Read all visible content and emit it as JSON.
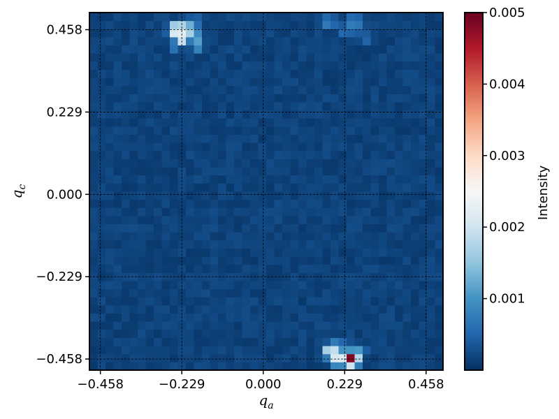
{
  "chart_data": {
    "type": "heatmap",
    "title": "",
    "xlabel_main": "q",
    "xlabel_sub": "a",
    "ylabel_main": "q",
    "ylabel_sub": "c",
    "xlim": [
      -0.4888,
      0.5056
    ],
    "ylim": [
      -0.4888,
      0.5056
    ],
    "x_ticks": [
      -0.458,
      -0.229,
      0.0,
      0.229,
      0.458
    ],
    "x_tick_labels": [
      "−0.458",
      "−0.229",
      "0.000",
      "0.229",
      "0.458"
    ],
    "y_ticks": [
      -0.458,
      -0.229,
      0.0,
      0.229,
      0.458
    ],
    "y_tick_labels": [
      "−0.458",
      "−0.229",
      "0.000",
      "0.229",
      "0.458"
    ],
    "grid": true,
    "grid_style": "dashed",
    "colormap": "RdBu_r",
    "colormap_stops": [
      "#053061",
      "#2166ac",
      "#4393c3",
      "#92c5de",
      "#d1e5f0",
      "#f7f7f7",
      "#fddbc7",
      "#f4a582",
      "#d6604d",
      "#b2182b",
      "#67001f"
    ],
    "color_range": [
      0.0,
      0.005
    ],
    "colorbar": {
      "label": "Intensity",
      "ticks": [
        0.001,
        0.002,
        0.003,
        0.004,
        0.005
      ],
      "tick_labels": [
        "0.001",
        "0.002",
        "0.003",
        "0.004",
        "0.005"
      ]
    },
    "grid_size": [
      44,
      44
    ],
    "cell_size": 0.0226,
    "background_level": 0.0002,
    "peaks": [
      {
        "qa": -0.229,
        "qc": 0.458,
        "value": 0.0027
      },
      {
        "qa": -0.248,
        "qc": 0.458,
        "value": 0.0026
      },
      {
        "qa": -0.206,
        "qc": 0.458,
        "value": 0.002
      },
      {
        "qa": -0.229,
        "qc": 0.436,
        "value": 0.0024
      },
      {
        "qa": -0.186,
        "qc": 0.436,
        "value": 0.0014
      },
      {
        "qa": -0.248,
        "qc": 0.436,
        "value": 0.0009
      },
      {
        "qa": -0.206,
        "qc": 0.436,
        "value": 0.0009
      },
      {
        "qa": -0.186,
        "qc": 0.413,
        "value": 0.001
      },
      {
        "qa": -0.248,
        "qc": 0.413,
        "value": 0.0008
      },
      {
        "qa": -0.186,
        "qc": 0.48,
        "value": 0.0007
      },
      {
        "qa": -0.206,
        "qc": 0.48,
        "value": 0.0006
      },
      {
        "qa": 0.248,
        "qc": -0.458,
        "value": 0.005
      },
      {
        "qa": 0.229,
        "qc": -0.458,
        "value": 0.0024
      },
      {
        "qa": 0.206,
        "qc": -0.458,
        "value": 0.0023
      },
      {
        "qa": 0.206,
        "qc": -0.436,
        "value": 0.0021
      },
      {
        "qa": 0.186,
        "qc": -0.436,
        "value": 0.002
      },
      {
        "qa": 0.271,
        "qc": -0.436,
        "value": 0.0011
      },
      {
        "qa": 0.229,
        "qc": -0.436,
        "value": 0.0009
      },
      {
        "qa": 0.248,
        "qc": -0.436,
        "value": 0.0008
      },
      {
        "qa": 0.206,
        "qc": -0.413,
        "value": 0.0008
      },
      {
        "qa": 0.229,
        "qc": -0.413,
        "value": 0.0006
      },
      {
        "qa": 0.186,
        "qc": 0.48,
        "value": 0.001
      },
      {
        "qa": 0.248,
        "qc": 0.48,
        "value": 0.0009
      },
      {
        "qa": 0.271,
        "qc": 0.48,
        "value": 0.0008
      },
      {
        "qa": 0.229,
        "qc": 0.458,
        "value": 0.0007
      },
      {
        "qa": 0.248,
        "qc": 0.458,
        "value": 0.0006
      },
      {
        "qa": 0.271,
        "qc": 0.458,
        "value": 0.0005
      },
      {
        "qa": 0.292,
        "qc": 0.436,
        "value": 0.0006
      }
    ]
  }
}
